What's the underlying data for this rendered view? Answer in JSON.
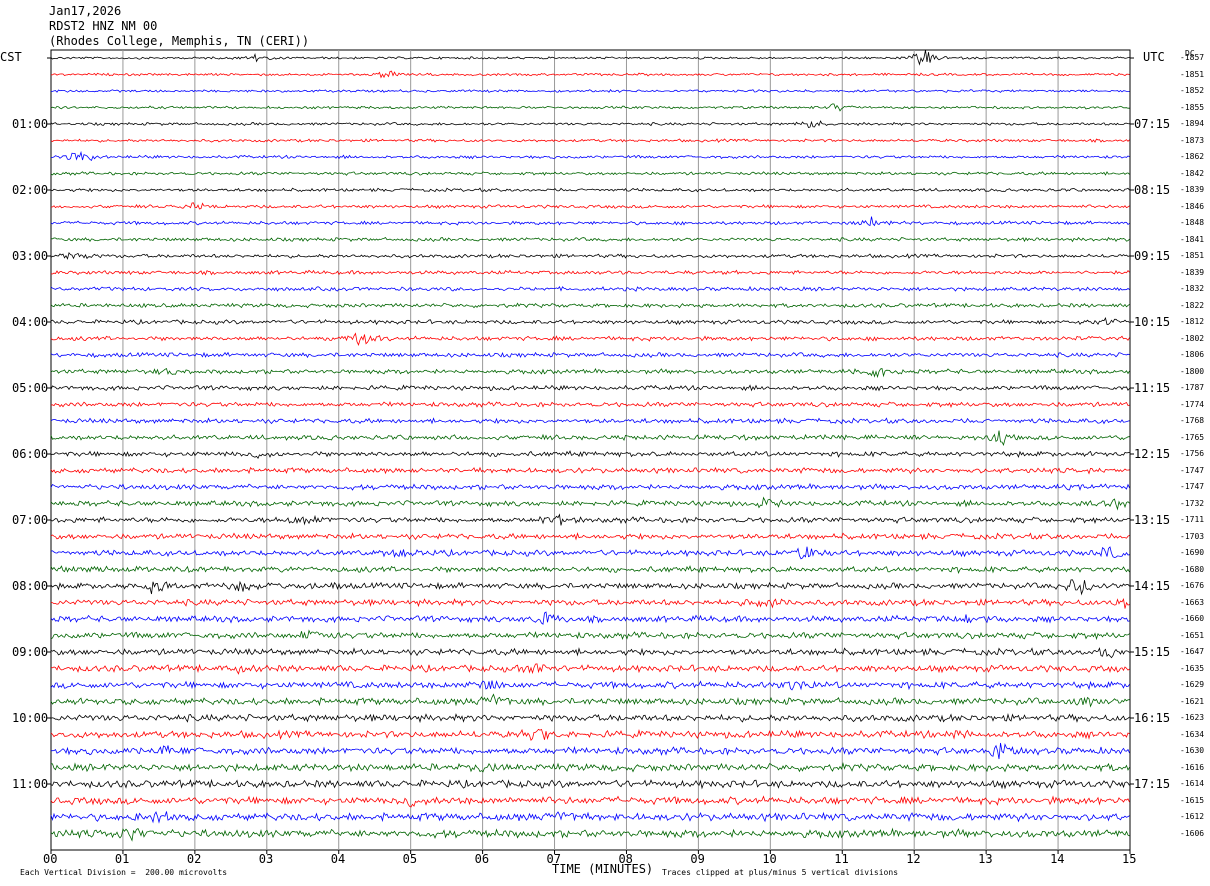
{
  "header": {
    "date": "Jan17,2026",
    "station": "RDST2 HNZ NM 00",
    "location": "(Rhodes College, Memphis, TN (CERI))"
  },
  "left_tz": "CST",
  "right_tz": "UTC",
  "dc_label": "DC",
  "left_hours": [
    "01:00",
    "02:00",
    "03:00",
    "04:00",
    "05:00",
    "06:00",
    "07:00",
    "08:00",
    "09:00",
    "10:00",
    "11:00"
  ],
  "right_hours": [
    "07:15",
    "08:15",
    "09:15",
    "10:15",
    "11:15",
    "12:15",
    "13:15",
    "14:15",
    "15:15",
    "16:15",
    "17:15"
  ],
  "dc_offsets": [
    "-1857",
    "-1851",
    "-1852",
    "-1855",
    "-1894",
    "-1873",
    "-1862",
    "-1842",
    "-1839",
    "-1846",
    "-1848",
    "-1841",
    "-1851",
    "-1839",
    "-1832",
    "-1822",
    "-1812",
    "-1802",
    "-1806",
    "-1800",
    "-1787",
    "-1774",
    "-1768",
    "-1765",
    "-1756",
    "-1747",
    "-1747",
    "-1732",
    "-1711",
    "-1703",
    "-1690",
    "-1680",
    "-1676",
    "-1663",
    "-1660",
    "-1651",
    "-1647",
    "-1635",
    "-1629",
    "-1621",
    "-1623",
    "-1634",
    "-1630",
    "-1616",
    "-1614",
    "-1615",
    "-1612",
    "-1606"
  ],
  "footer": {
    "scale": "Each Vertical Division =  200.00 microvolts",
    "clip": "Traces clipped at plus/minus 5 vertical divisions",
    "xlabel": "TIME (MINUTES)"
  },
  "chart_data": {
    "type": "line",
    "title": "Jan17,2026 RDST2 HNZ NM 00 (Rhodes College, Memphis, TN (CERI))",
    "xlabel": "TIME (MINUTES)",
    "ylabel": "CST",
    "x_ticks": [
      "00",
      "01",
      "02",
      "03",
      "04",
      "05",
      "06",
      "07",
      "08",
      "09",
      "10",
      "11",
      "12",
      "13",
      "14",
      "15"
    ],
    "xlim": [
      0,
      15
    ],
    "n_traces": 48,
    "trace_minutes": 15,
    "trace_colors": [
      "#000000",
      "#ff0000",
      "#0000ff",
      "#006400"
    ],
    "grid": true,
    "events": [
      {
        "trace": 0,
        "minute": 12.15,
        "amp": 1.8
      },
      {
        "trace": 0,
        "minute": 2.85,
        "amp": 0.7
      },
      {
        "trace": 1,
        "minute": 4.7,
        "amp": 0.8
      },
      {
        "trace": 3,
        "minute": 10.9,
        "amp": 0.7
      },
      {
        "trace": 4,
        "minute": 10.6,
        "amp": 0.8
      },
      {
        "trace": 6,
        "minute": 0.4,
        "amp": 1.4
      },
      {
        "trace": 9,
        "minute": 2.0,
        "amp": 0.6
      },
      {
        "trace": 10,
        "minute": 11.4,
        "amp": 0.8
      },
      {
        "trace": 12,
        "minute": 0.3,
        "amp": 0.7
      },
      {
        "trace": 16,
        "minute": 14.7,
        "amp": 0.7
      },
      {
        "trace": 17,
        "minute": 4.3,
        "amp": 1.2
      },
      {
        "trace": 19,
        "minute": 1.75,
        "amp": 0.7
      },
      {
        "trace": 19,
        "minute": 11.5,
        "amp": 1.4
      },
      {
        "trace": 23,
        "minute": 13.2,
        "amp": 1.0
      },
      {
        "trace": 24,
        "minute": 2.9,
        "amp": 0.6
      },
      {
        "trace": 27,
        "minute": 9.9,
        "amp": 0.7
      },
      {
        "trace": 27,
        "minute": 14.8,
        "amp": 0.9
      },
      {
        "trace": 28,
        "minute": 3.5,
        "amp": 0.8
      },
      {
        "trace": 28,
        "minute": 7.1,
        "amp": 0.8
      },
      {
        "trace": 30,
        "minute": 4.9,
        "amp": 0.7
      },
      {
        "trace": 30,
        "minute": 10.5,
        "amp": 1.2
      },
      {
        "trace": 30,
        "minute": 14.7,
        "amp": 1.0
      },
      {
        "trace": 32,
        "minute": 1.4,
        "amp": 1.2
      },
      {
        "trace": 32,
        "minute": 2.6,
        "amp": 0.9
      },
      {
        "trace": 32,
        "minute": 3.8,
        "amp": 0.8
      },
      {
        "trace": 32,
        "minute": 14.3,
        "amp": 1.8
      },
      {
        "trace": 33,
        "minute": 10.0,
        "amp": 0.6
      },
      {
        "trace": 33,
        "minute": 15.0,
        "amp": 0.9
      },
      {
        "trace": 34,
        "minute": 6.9,
        "amp": 1.2
      },
      {
        "trace": 34,
        "minute": 12.7,
        "amp": 1.1
      },
      {
        "trace": 35,
        "minute": 3.6,
        "amp": 0.6
      },
      {
        "trace": 36,
        "minute": 14.7,
        "amp": 0.8
      },
      {
        "trace": 37,
        "minute": 2.6,
        "amp": 0.9
      },
      {
        "trace": 37,
        "minute": 6.7,
        "amp": 1.0
      },
      {
        "trace": 38,
        "minute": 6.1,
        "amp": 1.0
      },
      {
        "trace": 38,
        "minute": 10.3,
        "amp": 0.8
      },
      {
        "trace": 39,
        "minute": 6.15,
        "amp": 1.2
      },
      {
        "trace": 39,
        "minute": 14.3,
        "amp": 0.7
      },
      {
        "trace": 41,
        "minute": 6.8,
        "amp": 1.0
      },
      {
        "trace": 41,
        "minute": 12.6,
        "amp": 0.6
      },
      {
        "trace": 42,
        "minute": 1.6,
        "amp": 0.7
      },
      {
        "trace": 42,
        "minute": 13.2,
        "amp": 1.2
      },
      {
        "trace": 43,
        "minute": 6.0,
        "amp": 0.7
      },
      {
        "trace": 45,
        "minute": 5.0,
        "amp": 0.9
      },
      {
        "trace": 46,
        "minute": 1.5,
        "amp": 1.0
      },
      {
        "trace": 46,
        "minute": 7.1,
        "amp": 0.8
      },
      {
        "trace": 47,
        "minute": 1.1,
        "amp": 1.4
      }
    ]
  }
}
